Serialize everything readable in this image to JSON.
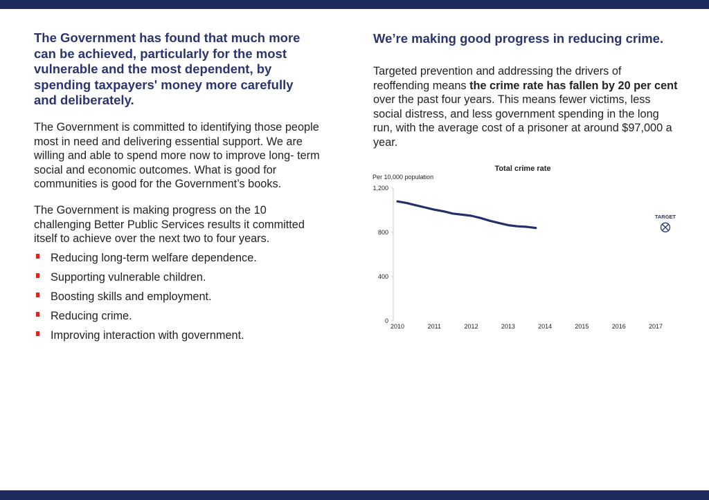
{
  "colors": {
    "brand_navy": "#1f2a5c",
    "heading_blue": "#2a3570",
    "bullet_red": "#e0241b",
    "line": "#22306a"
  },
  "left": {
    "heading": "The Government has found that much more\n can be achieved, particularly for the most\nvulnerable and the most dependent, by\nspending taxpayers' money more carefully\nand deliberately.",
    "paragraph1": "The Government is committed to identifying those people\nmost in need and delivering essential support. We are\nwilling and able to spend more now to improve long- term\nsocial and economic outcomes. What is good for\ncommunities is good for the Government’s books.",
    "paragraph2": "The Government is making progress on the 10\nchallenging Better Public Services results it committed\n itself to achieve over the next two to four years.",
    "bullets": [
      "Reducing long-term welfare dependence.",
      "Supporting vulnerable children.",
      "Boosting skills and employment.",
      "Reducing crime.",
      "Improving interaction with government."
    ]
  },
  "right": {
    "heading": "We’re making good progress in reducing crime.",
    "para_pre": "Targeted prevention and addressing the drivers of reoffending means ",
    "para_bold": "the crime rate has fallen by 20 per cent",
    "para_post": " over the past four years. This means fewer victims, less social distress, and less government spending in the long run, with the average cost of a prisoner at around $97,000 a year."
  },
  "chart_data": {
    "type": "line",
    "title": "Total crime rate",
    "ylabel": "Per 10,000 population",
    "xlabel": "",
    "ylim": [
      0,
      1200
    ],
    "yticks": [
      0,
      400,
      800,
      1200
    ],
    "ytick_labels": [
      "0",
      "400",
      "800",
      "1,200"
    ],
    "xlim": [
      2010,
      2017
    ],
    "xticks": [
      "2010",
      "2011",
      "2012",
      "2013",
      "2014",
      "2015",
      "2016",
      "2017"
    ],
    "series": [
      {
        "x": [
          2010.0,
          2010.25,
          2010.5,
          2010.75,
          2011.0,
          2011.25,
          2011.5,
          2011.75,
          2012.0,
          2012.25,
          2012.5,
          2012.75,
          2013.0,
          2013.25,
          2013.5,
          2013.75
        ],
        "values": [
          1080,
          1065,
          1045,
          1025,
          1005,
          990,
          970,
          960,
          950,
          930,
          905,
          885,
          865,
          855,
          850,
          840
        ]
      }
    ],
    "target": {
      "label": "TARGET",
      "x": 2017,
      "value": 845
    },
    "grid": false
  }
}
